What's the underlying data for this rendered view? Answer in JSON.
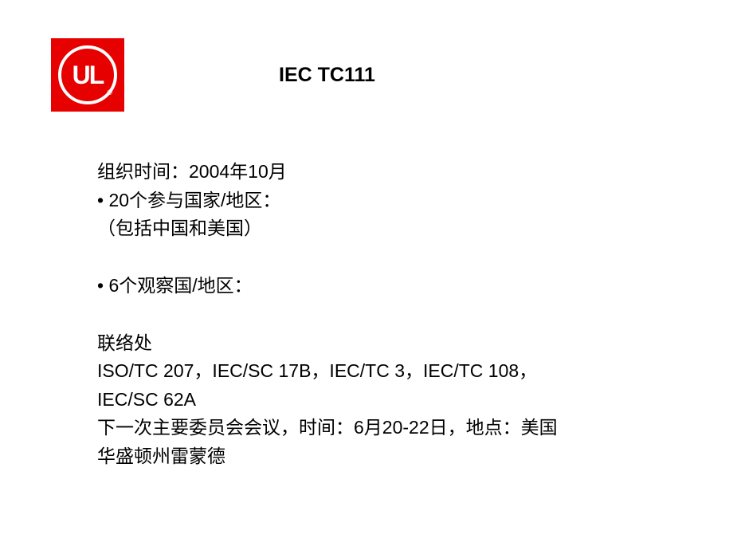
{
  "logo": {
    "text": "UL",
    "registered": "®",
    "bg_color": "#e60000",
    "text_color": "#ffffff"
  },
  "title": "IEC TC111",
  "content": {
    "line1": "组织时间：2004年10月",
    "line2": "• 20个参与国家/地区：",
    "line3": "（包括中国和美国）",
    "line4": "• 6个观察国/地区：",
    "line5": "联络处",
    "line6": "ISO/TC 207，IEC/SC 17B，IEC/TC 3，IEC/TC 108，",
    "line7": "IEC/SC 62A",
    "line8": "下一次主要委员会会议，时间：6月20-22日，地点：美国",
    "line9": "华盛顿州雷蒙德"
  }
}
